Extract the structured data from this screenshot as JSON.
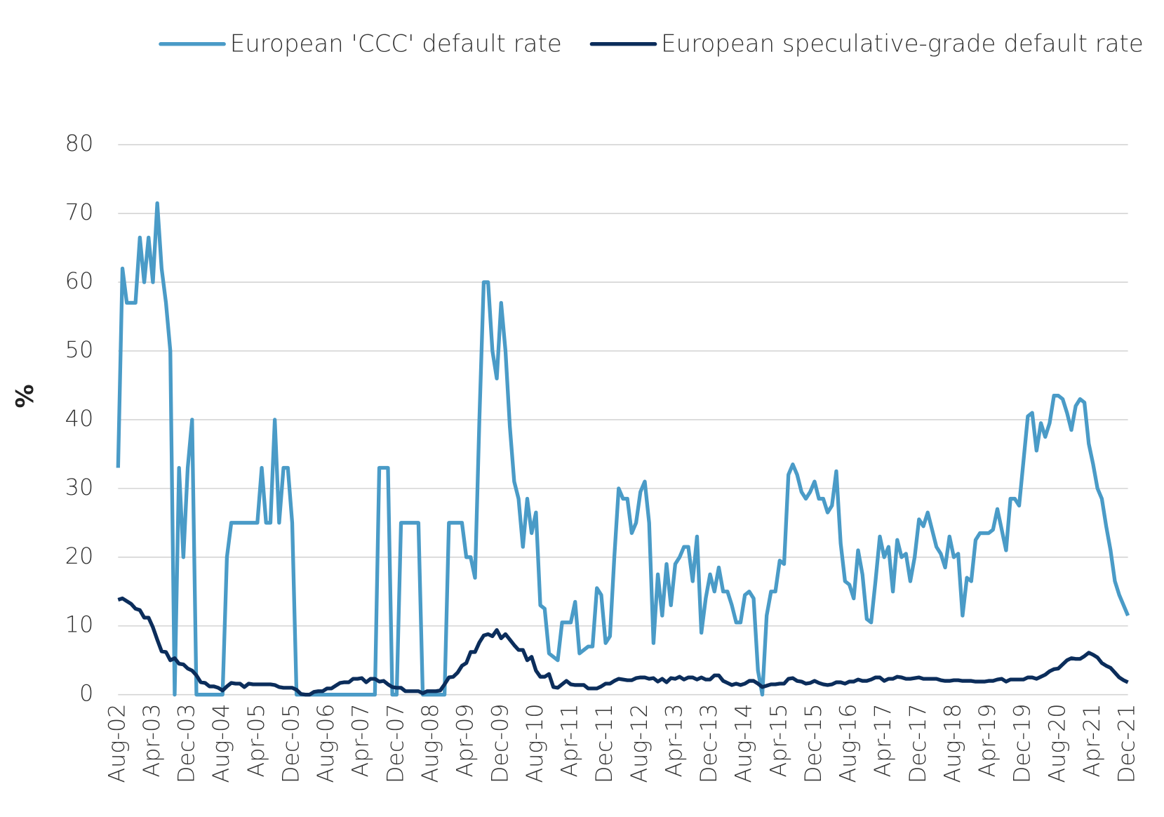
{
  "chart_data": {
    "type": "line",
    "y_label": "%",
    "categories": [
      "Aug-02",
      null,
      null,
      null,
      null,
      null,
      null,
      null,
      "Apr-03",
      null,
      null,
      null,
      null,
      null,
      null,
      null,
      "Dec-03",
      null,
      null,
      null,
      null,
      null,
      null,
      null,
      "Aug-04",
      null,
      null,
      null,
      null,
      null,
      null,
      null,
      "Apr-05",
      null,
      null,
      null,
      null,
      null,
      null,
      null,
      "Dec-05",
      null,
      null,
      null,
      null,
      null,
      null,
      null,
      "Aug-06",
      null,
      null,
      null,
      null,
      null,
      null,
      null,
      "Apr-07",
      null,
      null,
      null,
      null,
      null,
      null,
      null,
      "Dec-07",
      null,
      null,
      null,
      null,
      null,
      null,
      null,
      "Aug-08",
      null,
      null,
      null,
      null,
      null,
      null,
      null,
      "Apr-09",
      null,
      null,
      null,
      null,
      null,
      null,
      null,
      "Dec-09",
      null,
      null,
      null,
      null,
      null,
      null,
      null,
      "Aug-10",
      null,
      null,
      null,
      null,
      null,
      null,
      null,
      "Apr-11",
      null,
      null,
      null,
      null,
      null,
      null,
      null,
      "Dec-11",
      null,
      null,
      null,
      null,
      null,
      null,
      null,
      "Aug-12",
      null,
      null,
      null,
      null,
      null,
      null,
      null,
      "Apr-13",
      null,
      null,
      null,
      null,
      null,
      null,
      null,
      "Dec-13",
      null,
      null,
      null,
      null,
      null,
      null,
      null,
      "Aug-14",
      null,
      null,
      null,
      null,
      null,
      null,
      null,
      "Apr-15",
      null,
      null,
      null,
      null,
      null,
      null,
      null,
      "Dec-15",
      null,
      null,
      null,
      null,
      null,
      null,
      null,
      "Aug-16",
      null,
      null,
      null,
      null,
      null,
      null,
      null,
      "Apr-17",
      null,
      null,
      null,
      null,
      null,
      null,
      null,
      "Dec-17",
      null,
      null,
      null,
      null,
      null,
      null,
      null,
      "Aug-18",
      null,
      null,
      null,
      null,
      null,
      null,
      null,
      "Apr-19",
      null,
      null,
      null,
      null,
      null,
      null,
      null,
      "Dec-19",
      null,
      null,
      null,
      null,
      null,
      null,
      null,
      "Aug-20",
      null,
      null,
      null,
      null,
      null,
      null,
      null,
      "Apr-21",
      null,
      null,
      null,
      null,
      null,
      null,
      null,
      "Dec-21"
    ],
    "series": [
      {
        "name": "European 'CCC' default rate",
        "color": "#4a9bc7",
        "values": [
          33,
          62,
          57,
          57,
          57,
          66.5,
          60,
          66.5,
          60,
          71.5,
          62,
          57,
          50,
          0,
          33,
          20,
          33,
          40,
          0,
          0,
          0,
          0,
          0,
          0,
          0,
          20,
          25,
          25,
          25,
          25,
          25,
          25,
          25,
          33,
          25,
          25,
          40,
          25,
          33,
          33,
          25,
          0,
          0,
          0,
          0,
          0,
          0,
          0,
          0,
          0,
          0,
          0,
          0,
          0,
          0,
          0,
          0,
          0,
          0,
          0,
          33,
          33,
          33,
          0,
          0,
          25,
          25,
          25,
          25,
          25,
          0,
          0,
          0,
          0,
          0,
          0,
          25,
          25,
          25,
          25,
          20,
          20,
          17,
          40,
          60,
          60,
          50,
          46,
          57,
          50,
          39,
          31,
          28.5,
          21.5,
          28.5,
          23.5,
          26.5,
          13,
          12.5,
          6,
          5.5,
          5,
          10.5,
          10.5,
          10.5,
          13.5,
          6,
          6.5,
          7,
          7,
          15.5,
          14.5,
          7.5,
          8.5,
          20,
          30,
          28.5,
          28.5,
          23.5,
          25,
          29.5,
          31,
          25,
          7.5,
          17.5,
          11.5,
          19,
          13,
          19,
          20,
          21.5,
          21.5,
          16.5,
          23,
          9,
          14,
          17.5,
          15,
          18.5,
          15,
          15,
          13,
          10.5,
          10.5,
          14.5,
          15,
          14,
          3.5,
          0,
          11.5,
          15,
          15,
          19.5,
          19,
          32,
          33.5,
          32,
          29.5,
          28.5,
          29.5,
          31,
          28.5,
          28.5,
          26.5,
          27.5,
          32.5,
          22,
          16.5,
          16,
          14,
          21,
          17.5,
          11,
          10.5,
          16.5,
          23,
          20,
          21.5,
          15,
          22.5,
          20,
          20.5,
          16.5,
          20,
          25.5,
          24.5,
          26.5,
          24,
          21.5,
          20.5,
          18.5,
          23,
          20,
          20.5,
          11.5,
          17,
          16.5,
          22.5,
          23.5,
          23.5,
          23.5,
          24,
          27,
          24,
          21,
          28.5,
          28.5,
          27.5,
          34,
          40.5,
          41,
          35.5,
          39.5,
          37.5,
          39.5,
          43.5,
          43.5,
          43,
          41,
          38.5,
          42,
          43,
          42.5,
          36.5,
          33.5,
          30,
          28.5,
          24.5,
          21,
          16.5,
          14.5,
          13,
          11.5
        ]
      },
      {
        "name": "European speculative-grade default rate",
        "color": "#0b2d5b",
        "values": [
          13.8,
          14,
          13.6,
          13.2,
          12.5,
          12.3,
          11.2,
          11.2,
          9.8,
          8,
          6.3,
          6.2,
          5,
          5.3,
          4.5,
          4.4,
          3.8,
          3.5,
          2.8,
          1.8,
          1.7,
          1.2,
          1.2,
          1,
          0.6,
          1.2,
          1.7,
          1.6,
          1.6,
          1.1,
          1.6,
          1.5,
          1.5,
          1.5,
          1.5,
          1.5,
          1.4,
          1.1,
          1,
          1,
          1,
          0.7,
          0.1,
          0,
          0,
          0.4,
          0.5,
          0.5,
          0.9,
          0.9,
          1.3,
          1.7,
          1.8,
          1.8,
          2.3,
          2.3,
          2.4,
          1.8,
          2.3,
          2.3,
          1.9,
          2,
          1.5,
          1.1,
          1,
          1,
          0.5,
          0.5,
          0.5,
          0.5,
          0.2,
          0.5,
          0.5,
          0.5,
          0.6,
          1.5,
          2.5,
          2.6,
          3.2,
          4.2,
          4.6,
          6.2,
          6.2,
          7.6,
          8.6,
          8.8,
          8.5,
          9.4,
          8.2,
          8.8,
          8,
          7.2,
          6.5,
          6.5,
          5,
          5.5,
          3.5,
          2.6,
          2.6,
          3,
          1.1,
          1,
          1.5,
          2,
          1.5,
          1.4,
          1.4,
          1.4,
          0.9,
          0.9,
          0.9,
          1.2,
          1.6,
          1.6,
          2,
          2.3,
          2.2,
          2.1,
          2.1,
          2.4,
          2.5,
          2.5,
          2.3,
          2.4,
          1.9,
          2.3,
          1.8,
          2.4,
          2.3,
          2.6,
          2.2,
          2.5,
          2.5,
          2.2,
          2.5,
          2.2,
          2.2,
          2.8,
          2.8,
          2,
          1.7,
          1.4,
          1.6,
          1.4,
          1.6,
          2,
          2,
          1.6,
          1.1,
          1.3,
          1.5,
          1.5,
          1.6,
          1.6,
          2.3,
          2.4,
          2,
          1.9,
          1.6,
          1.7,
          2,
          1.7,
          1.5,
          1.4,
          1.5,
          1.8,
          1.8,
          1.6,
          1.9,
          1.9,
          2.2,
          2,
          2,
          2.2,
          2.5,
          2.5,
          2,
          2.3,
          2.3,
          2.6,
          2.5,
          2.3,
          2.3,
          2.4,
          2.5,
          2.3,
          2.3,
          2.3,
          2.3,
          2.1,
          2,
          2,
          2.1,
          2.1,
          2,
          2,
          2,
          1.9,
          1.9,
          1.9,
          2,
          2,
          2.2,
          2.3,
          1.9,
          2.2,
          2.2,
          2.2,
          2.2,
          2.5,
          2.5,
          2.3,
          2.6,
          2.9,
          3.4,
          3.7,
          3.8,
          4.4,
          5,
          5.3,
          5.2,
          5.2,
          5.6,
          6.1,
          5.8,
          5.4,
          4.6,
          4.2,
          3.9,
          3.2,
          2.5,
          2.1,
          1.8
        ]
      }
    ],
    "ylim": [
      0,
      80
    ],
    "yticks": [
      0,
      10,
      20,
      30,
      40,
      50,
      60,
      70,
      80
    ],
    "grid": true,
    "legend": "top"
  }
}
